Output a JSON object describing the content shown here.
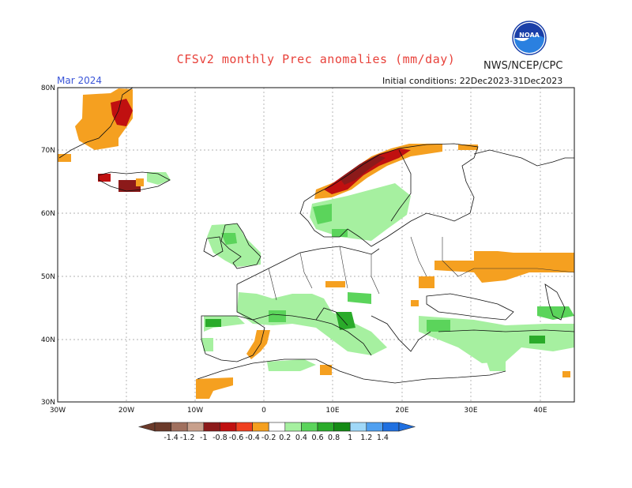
{
  "header": {
    "title": "CFSv2 monthly Prec anomalies (mm/day)",
    "agency": "NWS/NCEP/CPC",
    "month": "Mar 2024",
    "initial_conditions": "Initial conditions: 22Dec2023-31Dec2023",
    "logo_text": "NOAA"
  },
  "map": {
    "lat_labels": [
      "80N",
      "70N",
      "60N",
      "50N",
      "40N",
      "30N"
    ],
    "lon_labels": [
      "30W",
      "20W",
      "10W",
      "0",
      "10E",
      "20E",
      "30E",
      "40E"
    ],
    "grid": true,
    "colors": {
      "wet_light": "#a6f0a0",
      "wet_mid": "#5bd45b",
      "wet_strong": "#2aab2a",
      "dry_light": "#f5a020",
      "dry_mid": "#f06020",
      "dry_strong": "#c01010",
      "dry_extreme": "#8c1a1a"
    }
  },
  "colorbar": {
    "labels": [
      "-1.4",
      "-1.2",
      "-1",
      "-0.8",
      "-0.6",
      "-0.4",
      "-0.2",
      "0.2",
      "0.4",
      "0.6",
      "0.8",
      "1",
      "1.2",
      "1.4"
    ],
    "colors": [
      "#6b3a2a",
      "#a0705e",
      "#c8a08c",
      "#8c1a1a",
      "#c01010",
      "#f04020",
      "#f5a020",
      "#ffffff",
      "#a6f0a0",
      "#5bd45b",
      "#2aab2a",
      "#148a14",
      "#a0d8f8",
      "#50a0f0",
      "#2070e0"
    ]
  }
}
